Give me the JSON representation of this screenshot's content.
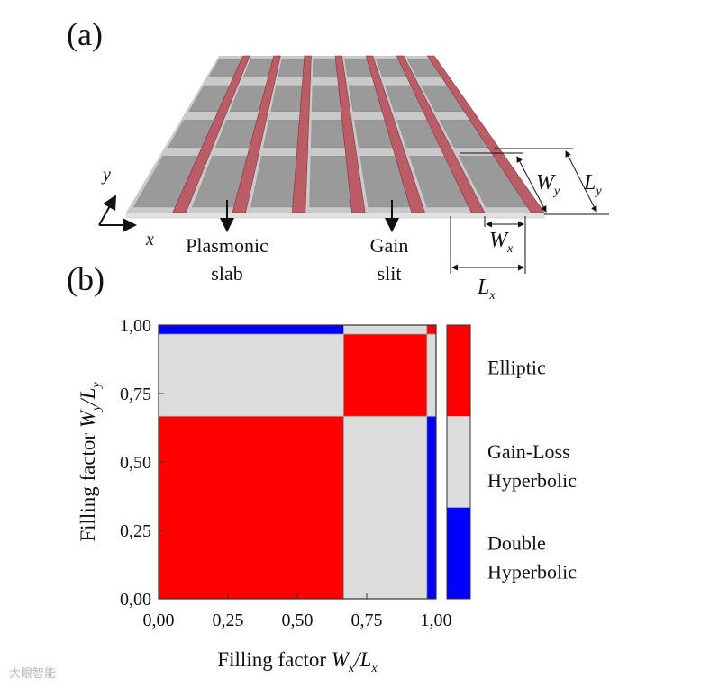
{
  "panel_a": {
    "label": "(a)",
    "annotations": {
      "plasmonic_line1": "Plasmonic",
      "plasmonic_line2": "slab",
      "gain_line1": "Gain",
      "gain_line2": "slit",
      "axis_x": "x",
      "axis_y": "y",
      "Wy_main": "W",
      "Wy_sub": "y",
      "Ly_main": "L",
      "Ly_sub": "y",
      "Wx_main": "W",
      "Wx_sub": "x",
      "Lx_main": "L",
      "Lx_sub": "x"
    },
    "colors": {
      "slab": "#9a9a9a",
      "gain": "#b84a55"
    }
  },
  "panel_b": {
    "label": "(b)",
    "chart_data": {
      "type": "heatmap",
      "xlabel_prefix": "Filling factor ",
      "xlabel_w": "W",
      "xlabel_wsub": "x",
      "xlabel_l": "/L",
      "xlabel_lsub": "x",
      "ylabel_prefix": "Filling factor ",
      "ylabel_w": "W",
      "ylabel_wsub": "y",
      "ylabel_l": "/L",
      "ylabel_lsub": "y",
      "xlim": [
        0,
        1
      ],
      "ylim": [
        0,
        1
      ],
      "xticks": [
        "0,00",
        "0,25",
        "0,50",
        "0,75",
        "1,00"
      ],
      "yticks": [
        "0,00",
        "0,25",
        "0,50",
        "0,75",
        "1,00"
      ],
      "xtick_values": [
        0,
        0.25,
        0.5,
        0.75,
        1.0
      ],
      "ytick_values": [
        0,
        0.25,
        0.5,
        0.75,
        1.0
      ],
      "regions": [
        {
          "x0": 0.0,
          "x1": 0.667,
          "y0": 0.0,
          "y1": 0.667,
          "class": "elliptic"
        },
        {
          "x0": 0.667,
          "x1": 0.967,
          "y0": 0.0,
          "y1": 0.667,
          "class": "gain_loss"
        },
        {
          "x0": 0.967,
          "x1": 1.0,
          "y0": 0.0,
          "y1": 0.667,
          "class": "double"
        },
        {
          "x0": 0.0,
          "x1": 0.667,
          "y0": 0.667,
          "y1": 0.967,
          "class": "gain_loss"
        },
        {
          "x0": 0.667,
          "x1": 0.967,
          "y0": 0.667,
          "y1": 0.967,
          "class": "elliptic"
        },
        {
          "x0": 0.967,
          "x1": 1.0,
          "y0": 0.667,
          "y1": 0.967,
          "class": "gain_loss"
        },
        {
          "x0": 0.0,
          "x1": 0.667,
          "y0": 0.967,
          "y1": 1.0,
          "class": "double"
        },
        {
          "x0": 0.667,
          "x1": 0.967,
          "y0": 0.967,
          "y1": 1.0,
          "class": "gain_loss"
        },
        {
          "x0": 0.967,
          "x1": 1.0,
          "y0": 0.967,
          "y1": 1.0,
          "class": "elliptic"
        }
      ],
      "legend": [
        {
          "key": "elliptic",
          "line1": "Elliptic",
          "line2": "",
          "color": "#ff0000"
        },
        {
          "key": "gain_loss",
          "line1": "Gain-Loss",
          "line2": "Hyperbolic",
          "color": "#dcdcdc"
        },
        {
          "key": "double",
          "line1": "Double",
          "line2": "Hyperbolic",
          "color": "#0000ff"
        }
      ]
    }
  },
  "watermark": "大眼智能"
}
